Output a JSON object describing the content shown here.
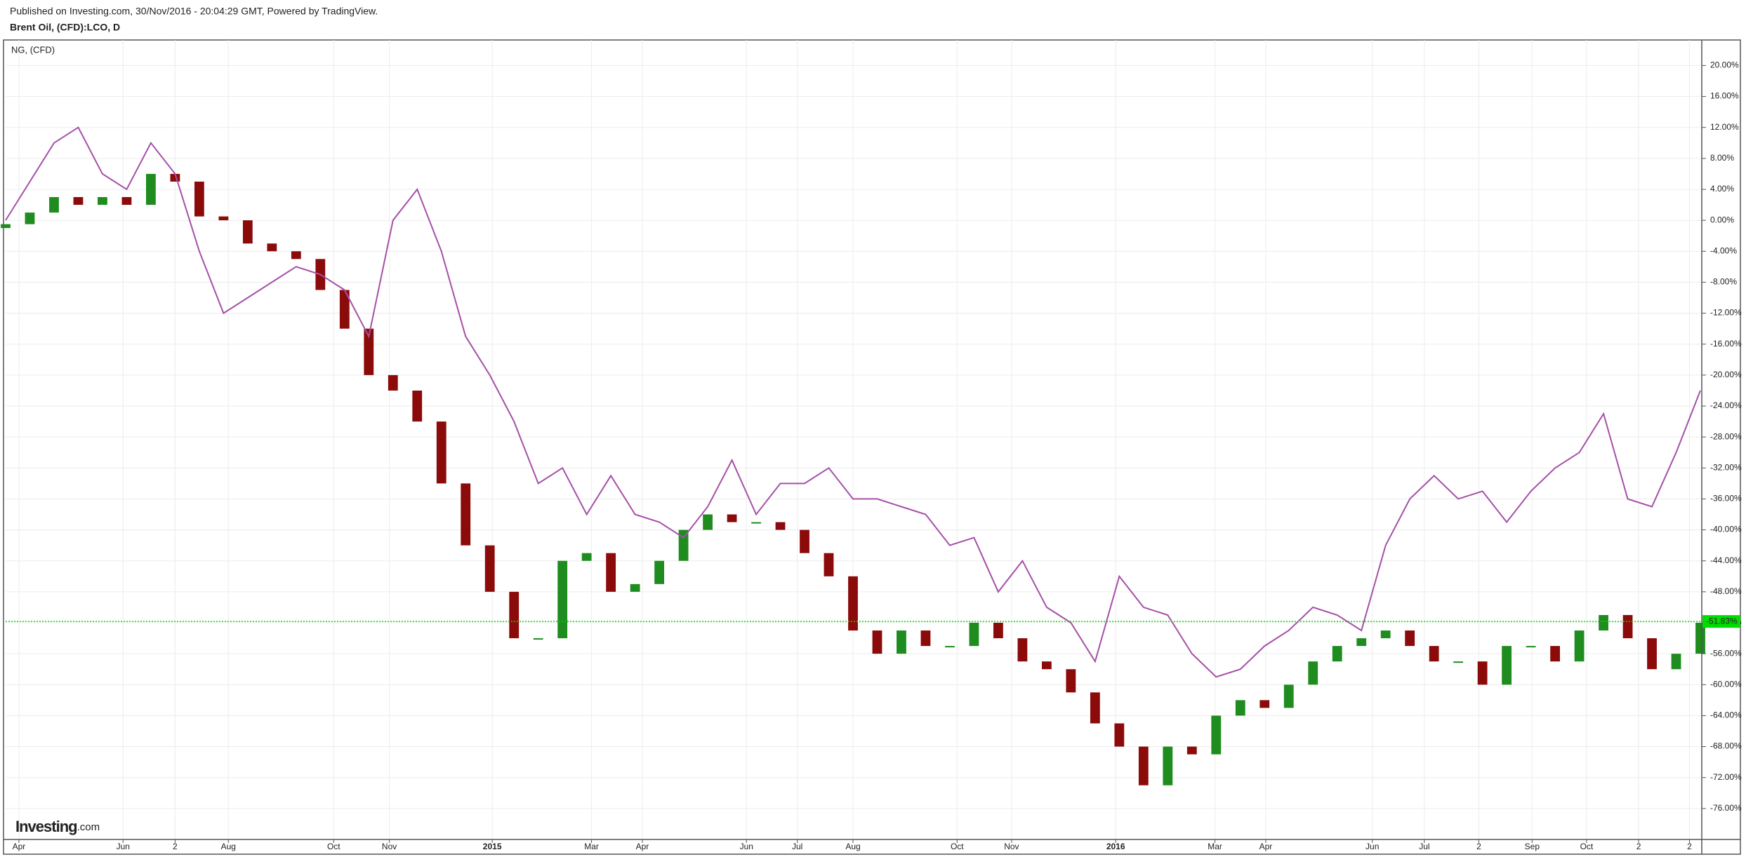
{
  "header": {
    "published": "Published on Investing.com, 30/Nov/2016 - 20:04:29 GMT, Powered by TradingView.",
    "symbol": "Brent Oil, (CFD):LCO, D"
  },
  "logo": {
    "brand": "Investing",
    "suffix": ".com"
  },
  "chart_data": {
    "type": "candlestick",
    "overlay_label": "NG,  (CFD)",
    "x": [
      0,
      2,
      4,
      6,
      8,
      10,
      12,
      14,
      16,
      18,
      20,
      22,
      24,
      26,
      28,
      30,
      32,
      34,
      36,
      38,
      40,
      42,
      44,
      46,
      48,
      50,
      52,
      54,
      56,
      58,
      60,
      62,
      64,
      66,
      68,
      70,
      72,
      74,
      76,
      78,
      80,
      82,
      84,
      86,
      88,
      90,
      92,
      94,
      96,
      98,
      100,
      102,
      104,
      106,
      108,
      110,
      112,
      114,
      116,
      118,
      120,
      122,
      124,
      126,
      128,
      130,
      132,
      134,
      136,
      138,
      140
    ],
    "xlim": [
      0,
      140
    ],
    "xticks": [
      {
        "value": 1.1,
        "label": "Apr"
      },
      {
        "value": 9.7,
        "label": "Jun"
      },
      {
        "value": 14.0,
        "label": "2"
      },
      {
        "value": 18.4,
        "label": "Aug"
      },
      {
        "value": 27.1,
        "label": "Oct"
      },
      {
        "value": 31.7,
        "label": "Nov"
      },
      {
        "value": 40.2,
        "label": "2015"
      },
      {
        "value": 48.4,
        "label": "Mar"
      },
      {
        "value": 52.6,
        "label": "Apr"
      },
      {
        "value": 61.2,
        "label": "Jun"
      },
      {
        "value": 65.4,
        "label": "Jul"
      },
      {
        "value": 70.0,
        "label": "Aug"
      },
      {
        "value": 78.6,
        "label": "Oct"
      },
      {
        "value": 83.1,
        "label": "Nov"
      },
      {
        "value": 91.7,
        "label": "2016"
      },
      {
        "value": 99.9,
        "label": "Mar"
      },
      {
        "value": 104.1,
        "label": "Apr"
      },
      {
        "value": 112.9,
        "label": "Jun"
      },
      {
        "value": 117.2,
        "label": "Jul"
      },
      {
        "value": 121.7,
        "label": "2"
      },
      {
        "value": 126.1,
        "label": "Sep"
      },
      {
        "value": 130.6,
        "label": "Oct"
      },
      {
        "value": 134.9,
        "label": "2"
      },
      {
        "value": 139.1,
        "label": "2"
      }
    ],
    "ylim": [
      -80,
      23.3
    ],
    "yticks": [
      {
        "value": 20,
        "label": "20.00%"
      },
      {
        "value": 16,
        "label": "16.00%"
      },
      {
        "value": 12,
        "label": "12.00%"
      },
      {
        "value": 8,
        "label": "8.00%"
      },
      {
        "value": 4,
        "label": "4.00%"
      },
      {
        "value": 0,
        "label": "0.00%"
      },
      {
        "value": -4,
        "label": "-4.00%"
      },
      {
        "value": -8,
        "label": "-8.00%"
      },
      {
        "value": -12,
        "label": "-12.00%"
      },
      {
        "value": -16,
        "label": "-16.00%"
      },
      {
        "value": -20,
        "label": "-20.00%"
      },
      {
        "value": -24,
        "label": "-24.00%"
      },
      {
        "value": -28,
        "label": "-28.00%"
      },
      {
        "value": -32,
        "label": "-32.00%"
      },
      {
        "value": -36,
        "label": "-36.00%"
      },
      {
        "value": -40,
        "label": "-40.00%"
      },
      {
        "value": -44,
        "label": "-44.00%"
      },
      {
        "value": -48,
        "label": "-48.00%"
      },
      {
        "value": -52,
        "label": "-52.00%"
      },
      {
        "value": -56,
        "label": "-56.00%"
      },
      {
        "value": -60,
        "label": "-60.00%"
      },
      {
        "value": -64,
        "label": "-64.00%"
      },
      {
        "value": -68,
        "label": "-68.00%"
      },
      {
        "value": -72,
        "label": "-72.00%"
      },
      {
        "value": -76,
        "label": "-76.00%"
      }
    ],
    "grid": true,
    "up_color": "#1e8c1e",
    "down_color": "#8b0a0a",
    "open": [
      -1,
      -0.5,
      1,
      3,
      2,
      3,
      2,
      6,
      5,
      0.5,
      0,
      -3,
      -4,
      -5,
      -9,
      -14,
      -20,
      -22,
      -26,
      -34,
      -42,
      -48,
      -54,
      -54,
      -44,
      -43,
      -48,
      -47,
      -44,
      -40,
      -38,
      -39,
      -39,
      -40,
      -43,
      -46,
      -53,
      -56,
      -53,
      -55,
      -55,
      -52,
      -54,
      -57,
      -58,
      -61,
      -65,
      -68,
      -73,
      -68,
      -69,
      -64,
      -62,
      -63,
      -60,
      -57,
      -55,
      -54,
      -53,
      -55,
      -57,
      -57,
      -60,
      -55,
      -55,
      -57,
      -53,
      -51,
      -54,
      -58,
      -56
    ],
    "close": [
      -0.5,
      1,
      3,
      2,
      3,
      2,
      6,
      5,
      0.5,
      0,
      -3,
      -4,
      -5,
      -9,
      -14,
      -20,
      -22,
      -26,
      -34,
      -42,
      -48,
      -54,
      -54,
      -44,
      -43,
      -48,
      -47,
      -44,
      -40,
      -38,
      -39,
      -39,
      -40,
      -43,
      -46,
      -53,
      -56,
      -53,
      -55,
      -55,
      -52,
      -54,
      -57,
      -58,
      -61,
      -65,
      -68,
      -73,
      -68,
      -69,
      -64,
      -62,
      -63,
      -60,
      -57,
      -55,
      -54,
      -53,
      -55,
      -57,
      -57,
      -60,
      -55,
      -55,
      -57,
      -53,
      -51,
      -54,
      -58,
      -56,
      -52
    ],
    "series": [
      {
        "name": "NG",
        "color": "#a550a8",
        "values": [
          0,
          5,
          10,
          12,
          6,
          4,
          10,
          6,
          -4,
          -12,
          -10,
          -8,
          -6,
          -7,
          -9,
          -15,
          0,
          4,
          -4,
          -15,
          -20,
          -26,
          -34,
          -32,
          -38,
          -33,
          -38,
          -39,
          -41,
          -37,
          -31,
          -38,
          -34,
          -34,
          -32,
          -36,
          -36,
          -37,
          -38,
          -42,
          -41,
          -48,
          -44,
          -50,
          -52,
          -57,
          -46,
          -50,
          -51,
          -56,
          -59,
          -58,
          -55,
          -53,
          -50,
          -51,
          -53,
          -42,
          -36,
          -33,
          -36,
          -35,
          -39,
          -35,
          -32,
          -30,
          -25,
          -36,
          -37,
          -30,
          -22
        ]
      }
    ],
    "last_value": {
      "value": -51.83,
      "label": "-51.83%",
      "color": "#00dd00"
    }
  }
}
